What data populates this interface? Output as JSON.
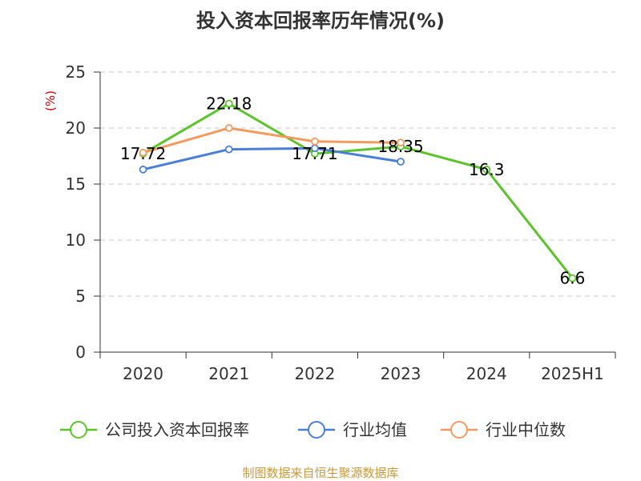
{
  "title": "投入资本回报率历年情况(%)",
  "source": "制图数据来自恒生聚源数据库",
  "chart_data": {
    "type": "line",
    "title": "投入资本回报率历年情况(%)",
    "unit_label": "(%)",
    "categories": [
      "2020",
      "2021",
      "2022",
      "2023",
      "2024",
      "2025H1"
    ],
    "ylim": [
      0,
      25
    ],
    "yticks": [
      0,
      5,
      10,
      15,
      20,
      25
    ],
    "grid": true,
    "legend_position": "bottom",
    "series": [
      {
        "name": "公司投入资本回报率",
        "color": "#5bc42a",
        "values": [
          17.72,
          22.18,
          17.71,
          18.35,
          16.3,
          6.6
        ],
        "labels": [
          "17.72",
          "22.18",
          "17.71",
          "18.35",
          "16.3",
          "6.6"
        ]
      },
      {
        "name": "行业均值",
        "color": "#4a7fd8",
        "values": [
          16.3,
          18.1,
          18.2,
          17.0,
          null,
          null
        ],
        "labels": []
      },
      {
        "name": "行业中位数",
        "color": "#f39a5e",
        "values": [
          17.8,
          20.0,
          18.8,
          18.7,
          null,
          null
        ],
        "labels": []
      }
    ]
  }
}
